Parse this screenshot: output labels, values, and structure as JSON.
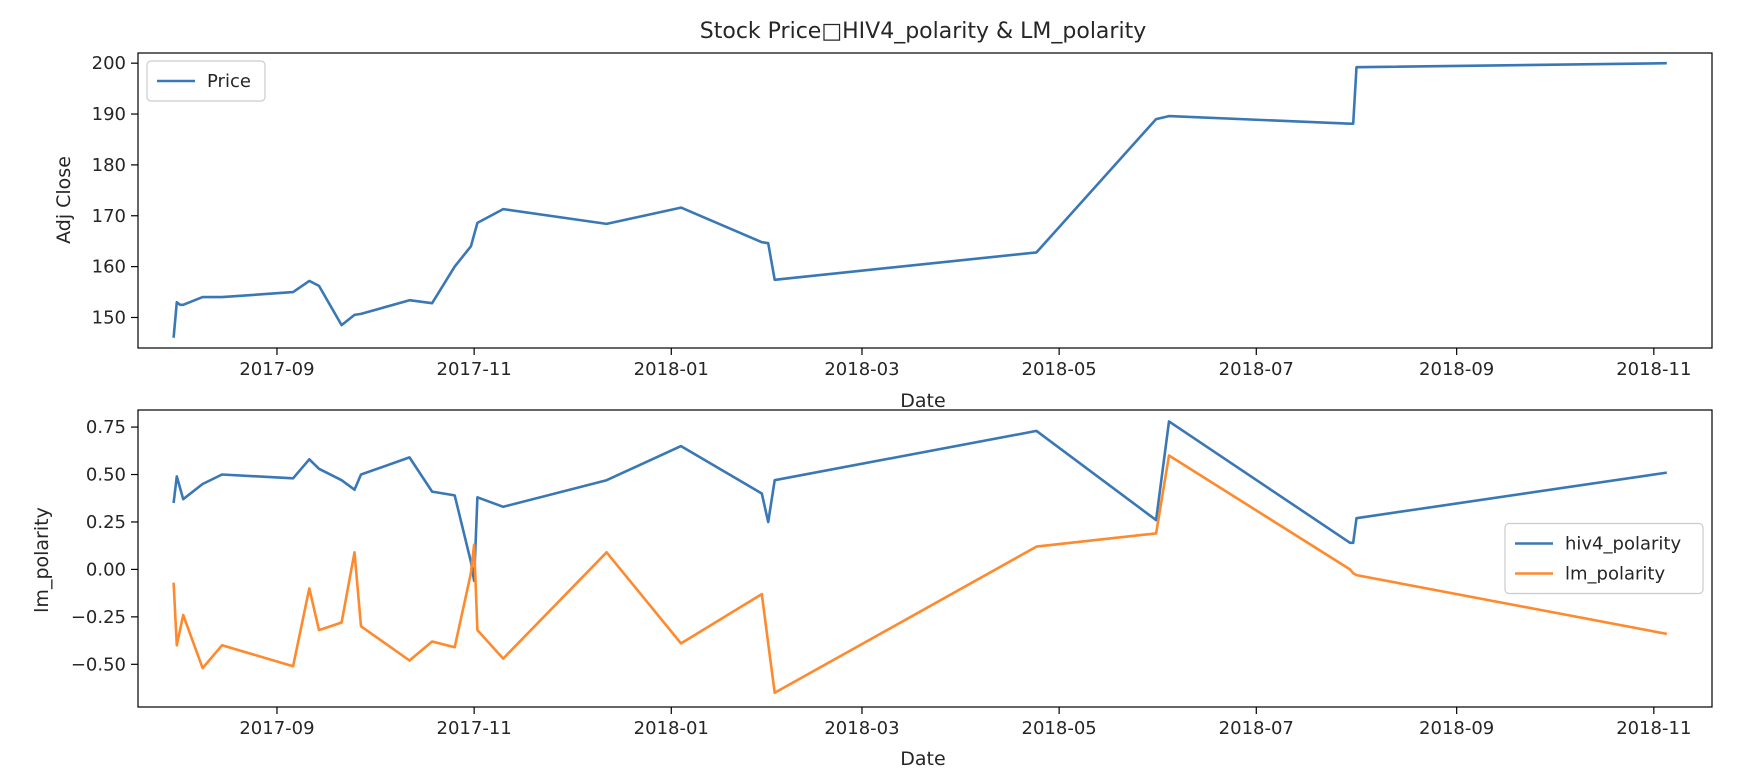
{
  "chart_data": {
    "type": "line",
    "title": "Stock Price□HIV4_polarity & LM_polarity",
    "panels": [
      {
        "xlabel": "Date",
        "ylabel": "Adj Close",
        "ylim": [
          144,
          202
        ],
        "yticks": [
          150,
          160,
          170,
          180,
          190,
          200
        ],
        "ytick_labels": [
          "150",
          "160",
          "170",
          "180",
          "190",
          "200"
        ],
        "xticks": [
          "2017-09-01",
          "2017-11-01",
          "2018-01-01",
          "2018-03-01",
          "2018-05-01",
          "2018-07-01",
          "2018-09-01",
          "2018-11-01"
        ],
        "xtick_labels": [
          "2017-09",
          "2017-11",
          "2018-01",
          "2018-03",
          "2018-05",
          "2018-07",
          "2018-09",
          "2018-11"
        ],
        "legend": "top-left",
        "series": [
          {
            "name": "Price",
            "color": "#3a78b5",
            "x": [
              "2017-07-31",
              "2017-08-01",
              "2017-08-02",
              "2017-08-03",
              "2017-08-09",
              "2017-08-15",
              "2017-09-06",
              "2017-09-11",
              "2017-09-14",
              "2017-09-21",
              "2017-09-25",
              "2017-09-27",
              "2017-10-12",
              "2017-10-19",
              "2017-10-26",
              "2017-10-31",
              "2017-11-02",
              "2017-11-10",
              "2017-12-12",
              "2018-01-04",
              "2018-01-29",
              "2018-01-31",
              "2018-02-02",
              "2018-04-24",
              "2018-05-31",
              "2018-06-04",
              "2018-07-30",
              "2018-07-31",
              "2018-08-01",
              "2018-11-05"
            ],
            "y": [
              146,
              153,
              152.5,
              152.5,
              154,
              154,
              155,
              157.2,
              156.2,
              148.5,
              150.5,
              150.7,
              153.4,
              152.8,
              160,
              164,
              168.6,
              171.3,
              168.4,
              171.6,
              164.8,
              164.6,
              157.4,
              162.8,
              189,
              189.6,
              188.1,
              188.1,
              199.2,
              200
            ]
          }
        ]
      },
      {
        "xlabel": "Date",
        "ylabel": "lm_polarity",
        "ylim": [
          -0.725,
          0.84
        ],
        "yticks": [
          -0.5,
          -0.25,
          0.0,
          0.25,
          0.5,
          0.75
        ],
        "ytick_labels": [
          "−0.50",
          "−0.25",
          "0.00",
          "0.25",
          "0.50",
          "0.75"
        ],
        "xticks": [
          "2017-09-01",
          "2017-11-01",
          "2018-01-01",
          "2018-03-01",
          "2018-05-01",
          "2018-07-01",
          "2018-09-01",
          "2018-11-01"
        ],
        "xtick_labels": [
          "2017-09",
          "2017-11",
          "2018-01",
          "2018-03",
          "2018-05",
          "2018-07",
          "2018-09",
          "2018-11"
        ],
        "legend": "center-right",
        "series": [
          {
            "name": "hiv4_polarity",
            "color": "#3a78b5",
            "x": [
              "2017-07-31",
              "2017-08-01",
              "2017-08-03",
              "2017-08-09",
              "2017-08-15",
              "2017-09-06",
              "2017-09-11",
              "2017-09-14",
              "2017-09-21",
              "2017-09-25",
              "2017-09-27",
              "2017-10-12",
              "2017-10-19",
              "2017-10-26",
              "2017-10-31",
              "2017-11-01",
              "2017-11-02",
              "2017-11-10",
              "2017-12-12",
              "2018-01-04",
              "2018-01-29",
              "2018-01-31",
              "2018-02-02",
              "2018-04-24",
              "2018-05-31",
              "2018-06-04",
              "2018-07-30",
              "2018-07-31",
              "2018-08-01",
              "2018-11-05"
            ],
            "y": [
              0.35,
              0.49,
              0.37,
              0.45,
              0.5,
              0.48,
              0.58,
              0.53,
              0.47,
              0.42,
              0.5,
              0.59,
              0.41,
              0.39,
              0.04,
              -0.06,
              0.38,
              0.33,
              0.47,
              0.65,
              0.4,
              0.25,
              0.47,
              0.73,
              0.26,
              0.78,
              0.14,
              0.14,
              0.27,
              0.51
            ]
          },
          {
            "name": "lm_polarity",
            "color": "#ff8a2e",
            "x": [
              "2017-07-31",
              "2017-08-01",
              "2017-08-03",
              "2017-08-09",
              "2017-08-15",
              "2017-09-06",
              "2017-09-11",
              "2017-09-14",
              "2017-09-21",
              "2017-09-25",
              "2017-09-27",
              "2017-10-12",
              "2017-10-19",
              "2017-10-26",
              "2017-10-31",
              "2017-11-01",
              "2017-11-02",
              "2017-11-10",
              "2017-12-12",
              "2018-01-04",
              "2018-01-29",
              "2018-01-31",
              "2018-02-02",
              "2018-04-24",
              "2018-05-31",
              "2018-06-04",
              "2018-07-30",
              "2018-07-31",
              "2018-08-01",
              "2018-11-05"
            ],
            "y": [
              -0.07,
              -0.4,
              -0.24,
              -0.52,
              -0.4,
              -0.51,
              -0.1,
              -0.32,
              -0.28,
              0.09,
              -0.3,
              -0.48,
              -0.38,
              -0.41,
              -0.02,
              0.13,
              -0.32,
              -0.47,
              0.09,
              -0.39,
              -0.13,
              -0.39,
              -0.65,
              0.12,
              0.19,
              0.6,
              0.0,
              -0.02,
              -0.03,
              -0.34
            ]
          }
        ]
      }
    ]
  }
}
